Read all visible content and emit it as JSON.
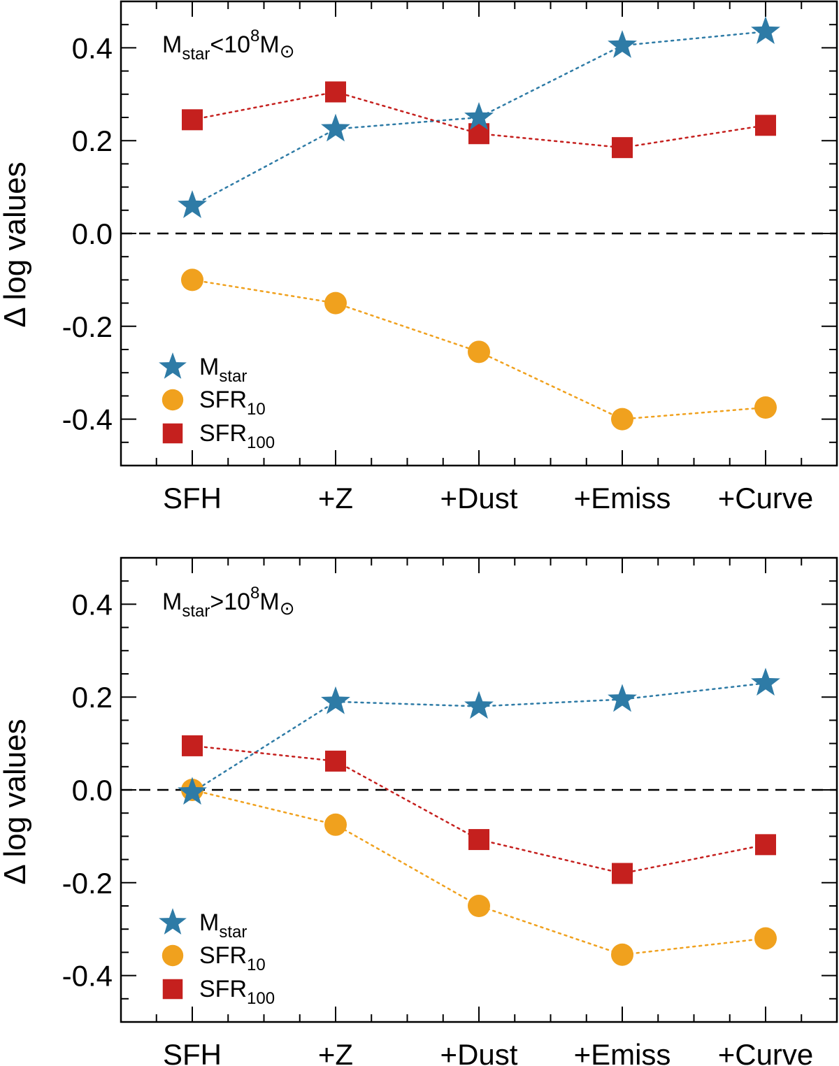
{
  "colors": {
    "mstar": "#2E7BA6",
    "sfr10": "#F0A11E",
    "sfr100": "#C5201E"
  },
  "chart_data": [
    {
      "type": "line",
      "annotation": {
        "base": "M",
        "sub": "star",
        "op": "<10",
        "exp": "8",
        "unit": "M",
        "sun": "⊙"
      },
      "ylabel": "Δ log values",
      "categories": [
        "SFH",
        "+Z",
        "+Dust",
        "+Emiss",
        "+Curve"
      ],
      "ylim": [
        -0.5,
        0.5
      ],
      "yticks": [
        "-0.4",
        "-0.2",
        "0.0",
        "0.2",
        "0.4"
      ],
      "reference_line": 0.0,
      "legend": {
        "placement": "bottom-left",
        "items": [
          {
            "base": "M",
            "sub": "star"
          },
          {
            "base": "SFR",
            "sub": "10"
          },
          {
            "base": "SFR",
            "sub": "100"
          }
        ]
      },
      "series": [
        {
          "name": "Mstar",
          "marker": "star",
          "values": [
            0.06,
            0.225,
            0.25,
            0.405,
            0.435
          ]
        },
        {
          "name": "SFR10",
          "marker": "circle",
          "values": [
            -0.1,
            -0.15,
            -0.255,
            -0.4,
            -0.375
          ]
        },
        {
          "name": "SFR100",
          "marker": "square",
          "values": [
            0.245,
            0.305,
            0.215,
            0.185,
            0.233
          ]
        }
      ]
    },
    {
      "type": "line",
      "annotation": {
        "base": "M",
        "sub": "star",
        "op": ">10",
        "exp": "8",
        "unit": "M",
        "sun": "⊙"
      },
      "ylabel": "Δ log values",
      "categories": [
        "SFH",
        "+Z",
        "+Dust",
        "+Emiss",
        "+Curve"
      ],
      "ylim": [
        -0.5,
        0.5
      ],
      "yticks": [
        "-0.4",
        "-0.2",
        "0.0",
        "0.2",
        "0.4"
      ],
      "reference_line": 0.0,
      "legend": {
        "placement": "bottom-left",
        "items": [
          {
            "base": "M",
            "sub": "star"
          },
          {
            "base": "SFR",
            "sub": "10"
          },
          {
            "base": "SFR",
            "sub": "100"
          }
        ]
      },
      "series": [
        {
          "name": "Mstar",
          "marker": "star",
          "values": [
            -0.005,
            0.19,
            0.18,
            0.195,
            0.23
          ]
        },
        {
          "name": "SFR10",
          "marker": "circle",
          "values": [
            0.0,
            -0.075,
            -0.25,
            -0.355,
            -0.32
          ]
        },
        {
          "name": "SFR100",
          "marker": "square",
          "values": [
            0.095,
            0.062,
            -0.107,
            -0.18,
            -0.118
          ]
        }
      ]
    }
  ]
}
